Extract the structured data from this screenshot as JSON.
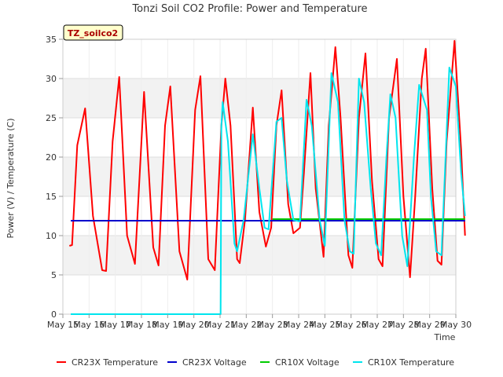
{
  "chart_data": {
    "type": "line",
    "title": "Tonzi Soil CO2 Profile: Power and Temperature",
    "xlabel": "Time",
    "ylabel": "Power (V) / Temperature (C)",
    "annotation": "TZ_soilco2",
    "ylim": [
      0,
      35
    ],
    "xlim": [
      15,
      30
    ],
    "grid": true,
    "legend_position": "bottom",
    "y_ticks": [
      0,
      5,
      10,
      15,
      20,
      25,
      30,
      35
    ],
    "x_ticks": [
      {
        "value": 15,
        "label": "May 15"
      },
      {
        "value": 16,
        "label": "May 16"
      },
      {
        "value": 17,
        "label": "May 17"
      },
      {
        "value": 18,
        "label": "May 18"
      },
      {
        "value": 19,
        "label": "May 19"
      },
      {
        "value": 20,
        "label": "May 20"
      },
      {
        "value": 21,
        "label": "May 21"
      },
      {
        "value": 22,
        "label": "May 22"
      },
      {
        "value": 23,
        "label": "May 23"
      },
      {
        "value": 24,
        "label": "May 24"
      },
      {
        "value": 25,
        "label": "May 25"
      },
      {
        "value": 26,
        "label": "May 26"
      },
      {
        "value": 27,
        "label": "May 27"
      },
      {
        "value": 28,
        "label": "May 28"
      },
      {
        "value": 29,
        "label": "May 29"
      },
      {
        "value": 30,
        "label": "May 30"
      }
    ],
    "series": [
      {
        "name": "CR23X Temperature",
        "color": "#ff0000",
        "points": [
          [
            15.25,
            8.7
          ],
          [
            15.35,
            8.8
          ],
          [
            15.55,
            21.5
          ],
          [
            15.85,
            26.2
          ],
          [
            16.15,
            12.5
          ],
          [
            16.5,
            5.6
          ],
          [
            16.65,
            5.5
          ],
          [
            16.9,
            22
          ],
          [
            17.15,
            30.2
          ],
          [
            17.45,
            10
          ],
          [
            17.75,
            6.4
          ],
          [
            18.1,
            28.3
          ],
          [
            18.45,
            8.5
          ],
          [
            18.65,
            6.2
          ],
          [
            18.9,
            24
          ],
          [
            19.1,
            29
          ],
          [
            19.45,
            8
          ],
          [
            19.75,
            4.4
          ],
          [
            20.05,
            26
          ],
          [
            20.25,
            30.3
          ],
          [
            20.55,
            7
          ],
          [
            20.8,
            5.6
          ],
          [
            21.05,
            24
          ],
          [
            21.2,
            30
          ],
          [
            21.4,
            24
          ],
          [
            21.65,
            7
          ],
          [
            21.75,
            6.5
          ],
          [
            21.95,
            12
          ],
          [
            22.25,
            26.3
          ],
          [
            22.5,
            13
          ],
          [
            22.75,
            8.6
          ],
          [
            22.95,
            11
          ],
          [
            23.15,
            24
          ],
          [
            23.35,
            28.5
          ],
          [
            23.6,
            14
          ],
          [
            23.8,
            10.3
          ],
          [
            24.05,
            11
          ],
          [
            24.2,
            18
          ],
          [
            24.45,
            30.7
          ],
          [
            24.65,
            16
          ],
          [
            24.95,
            7.3
          ],
          [
            25.15,
            24
          ],
          [
            25.4,
            34
          ],
          [
            25.6,
            25
          ],
          [
            25.9,
            7.5
          ],
          [
            26.05,
            5.9
          ],
          [
            26.3,
            25
          ],
          [
            26.55,
            33.2
          ],
          [
            26.8,
            17
          ],
          [
            27.05,
            7
          ],
          [
            27.2,
            6.1
          ],
          [
            27.45,
            25
          ],
          [
            27.75,
            32.5
          ],
          [
            28.0,
            15
          ],
          [
            28.25,
            4.7
          ],
          [
            28.45,
            15
          ],
          [
            28.7,
            30
          ],
          [
            28.85,
            33.8
          ],
          [
            29.1,
            16
          ],
          [
            29.3,
            6.8
          ],
          [
            29.45,
            6.3
          ],
          [
            29.65,
            22
          ],
          [
            29.95,
            34.8
          ],
          [
            30.2,
            21
          ],
          [
            30.35,
            10
          ]
        ]
      },
      {
        "name": "CR23X Voltage",
        "color": "#0000cc",
        "points": [
          [
            15.3,
            11.9
          ],
          [
            30.35,
            11.9
          ]
        ]
      },
      {
        "name": "CR10X Voltage",
        "color": "#00cc00",
        "points": [
          [
            23.0,
            12.1
          ],
          [
            30.35,
            12.1
          ]
        ]
      },
      {
        "name": "CR10X Temperature",
        "color": "#00e5ee",
        "points": [
          [
            15.3,
            0
          ],
          [
            21.0,
            0
          ],
          [
            21.02,
            0
          ],
          [
            21.05,
            24
          ],
          [
            21.1,
            27
          ],
          [
            21.3,
            22
          ],
          [
            21.55,
            9
          ],
          [
            21.65,
            8
          ],
          [
            21.9,
            12
          ],
          [
            22.25,
            22.9
          ],
          [
            22.5,
            16
          ],
          [
            22.7,
            11
          ],
          [
            22.85,
            10.8
          ],
          [
            23.15,
            24.5
          ],
          [
            23.35,
            25
          ],
          [
            23.55,
            17
          ],
          [
            23.8,
            12
          ],
          [
            24.05,
            11.8
          ],
          [
            24.3,
            27.3
          ],
          [
            24.5,
            24
          ],
          [
            24.8,
            12
          ],
          [
            25.0,
            8.7
          ],
          [
            25.25,
            30.7
          ],
          [
            25.5,
            27
          ],
          [
            25.75,
            12
          ],
          [
            25.95,
            8
          ],
          [
            26.1,
            7.7
          ],
          [
            26.3,
            30
          ],
          [
            26.5,
            27
          ],
          [
            26.75,
            16
          ],
          [
            26.95,
            9
          ],
          [
            27.15,
            7.5
          ],
          [
            27.35,
            20
          ],
          [
            27.5,
            28
          ],
          [
            27.7,
            25
          ],
          [
            27.95,
            10
          ],
          [
            28.15,
            6.1
          ],
          [
            28.4,
            20
          ],
          [
            28.6,
            29.2
          ],
          [
            28.9,
            26
          ],
          [
            29.05,
            15
          ],
          [
            29.25,
            8
          ],
          [
            29.45,
            7.5
          ],
          [
            29.75,
            31.4
          ],
          [
            30.0,
            29
          ],
          [
            30.2,
            18
          ],
          [
            30.35,
            12.5
          ]
        ]
      }
    ]
  }
}
